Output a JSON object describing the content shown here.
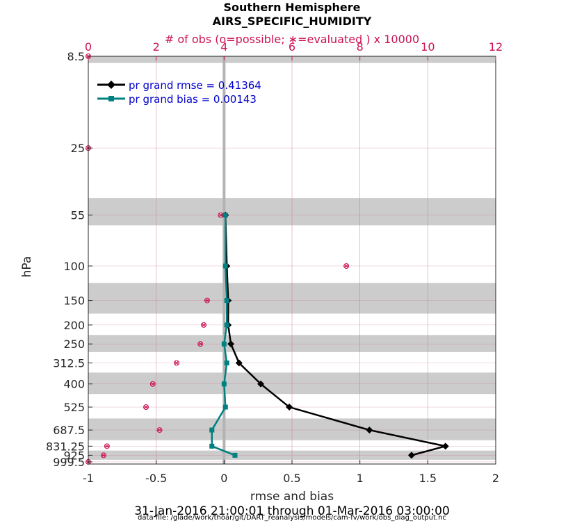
{
  "colors": {
    "rmse": "#000000",
    "bias": "#008080",
    "obs": "#cc1155",
    "band": "#cccccc",
    "grid": "#cc6688",
    "legend_text": "#0000cc"
  },
  "chart_data": {
    "type": "line",
    "title": "Southern Hemisphere",
    "subtitle": "AIRS_SPECIFIC_HUMIDITY",
    "top_axis_label": "# of obs (o=possible; ∗=evaluated ) x 10000",
    "xlabel": "rmse and bias",
    "ylabel": "hPa",
    "date_range": "31-Jan-2016 21:00:01 through 01-Mar-2016 03:00:00",
    "data_file": "data file: /glade/work/thoar/git/DART_reanalysis/models/cam-fv/work/obs_diag_output.nc",
    "xlim": [
      -1,
      2
    ],
    "x_ticks": [
      -1,
      -0.5,
      0,
      0.5,
      1,
      1.5,
      2
    ],
    "x_tick_labels": [
      "-1",
      "-0.5",
      "0",
      "0.5",
      "1",
      "1.5",
      "2"
    ],
    "top_xlim": [
      0,
      12
    ],
    "top_ticks": [
      0,
      2,
      4,
      6,
      8,
      10,
      12
    ],
    "top_tick_labels": [
      "0",
      "2",
      "4",
      "6",
      "8",
      "10",
      "12"
    ],
    "y_scale": "log",
    "y_reversed": true,
    "ylim": [
      8.5,
      1025
    ],
    "levels": [
      8.5,
      25,
      55,
      100,
      150,
      200,
      250,
      312.5,
      400,
      525,
      687.5,
      831.25,
      925,
      999.5
    ],
    "level_labels": [
      "8.5",
      "25",
      "55",
      "100",
      "150",
      "200",
      "250",
      "312.5",
      "400",
      "525",
      "687.5",
      "831.25",
      "925",
      "999.5"
    ],
    "bands": [
      [
        8.5,
        9.2
      ],
      [
        45,
        62
      ],
      [
        122,
        175
      ],
      [
        225,
        275
      ],
      [
        350,
        450
      ],
      [
        600,
        775
      ],
      [
        875,
        975
      ]
    ],
    "grid": true,
    "legend": {
      "placement": "top-left",
      "entries": [
        "pr grand rmse = 0.41364",
        "pr grand bias = 0.00143"
      ]
    },
    "series": [
      {
        "name": "pr grand rmse",
        "key": "rmse",
        "x": [
          0.01,
          0.02,
          0.03,
          0.03,
          0.05,
          0.11,
          0.27,
          0.48,
          1.07,
          1.63,
          1.38
        ],
        "y": [
          55,
          100,
          150,
          200,
          250,
          312.5,
          400,
          525,
          687.5,
          831.25,
          925
        ]
      },
      {
        "name": "pr grand bias",
        "key": "bias",
        "x": [
          0.01,
          0.01,
          0.02,
          0.02,
          0.0,
          0.02,
          0.0,
          0.01,
          -0.09,
          -0.09,
          0.08
        ],
        "y": [
          55,
          100,
          150,
          200,
          250,
          312.5,
          400,
          525,
          687.5,
          831.25,
          925
        ]
      }
    ],
    "obs_counts": {
      "x": [
        0.0,
        0.0,
        3.9,
        7.6,
        3.5,
        3.4,
        3.3,
        2.6,
        1.9,
        1.7,
        2.1,
        0.55,
        0.45,
        0.0
      ],
      "y": [
        8.5,
        25,
        55,
        100,
        150,
        200,
        250,
        312.5,
        400,
        525,
        687.5,
        831.25,
        925,
        999.5
      ]
    }
  }
}
